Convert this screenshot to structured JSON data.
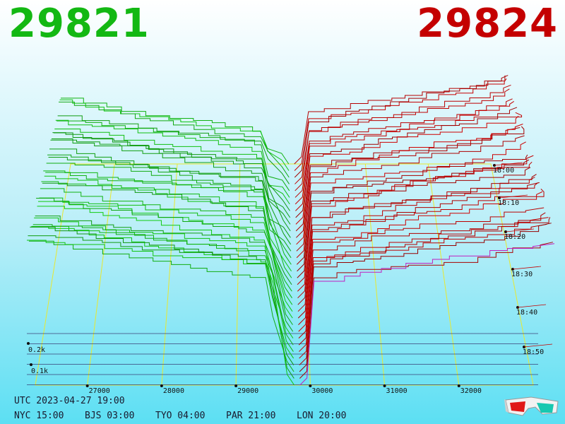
{
  "header": {
    "bid_price": "29821",
    "ask_price": "29824",
    "bid_color": "#13b813",
    "ask_color": "#c40000"
  },
  "footer": {
    "utc": "UTC 2023-04-27 19:00",
    "zones": [
      "NYC 15:00",
      "BJS 03:00",
      "TYO 04:00",
      "PAR 21:00",
      "LON 20:00"
    ]
  },
  "glasses_icon": "3d-glasses-icon",
  "chart_data": {
    "type": "area",
    "title": "",
    "price_axis": {
      "tick_labels": [
        "27000",
        "28000",
        "29000",
        "30000",
        "31000",
        "32000"
      ],
      "range": [
        26300,
        33000
      ]
    },
    "time_axis": {
      "tick_labels": [
        "18:00",
        "18:10",
        "18:20",
        "18:30",
        "18:40",
        "18:50"
      ]
    },
    "volume_axis": {
      "tick_labels": [
        "0.1k",
        "0.2k"
      ]
    },
    "mid_price": 29822,
    "series": [
      {
        "name": "",
        "side": "bid",
        "color": "#10b810"
      },
      {
        "name": "",
        "side": "ask",
        "color": "#b00000"
      }
    ]
  }
}
